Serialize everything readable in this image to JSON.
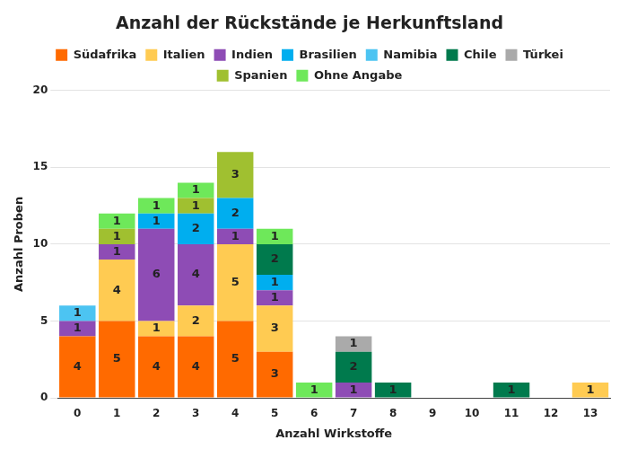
{
  "chart_data": {
    "type": "bar",
    "title": "Anzahl der Rückstände je Herkunftsland",
    "x_label": "Anzahl Wirkstoffe",
    "y_label": "Anzahl Proben",
    "categories": [
      "0",
      "1",
      "2",
      "3",
      "4",
      "5",
      "6",
      "7",
      "8",
      "9",
      "10",
      "11",
      "12",
      "13"
    ],
    "series": [
      {
        "name": "Südafrika",
        "color": "#ff6a00",
        "values": [
          4,
          5,
          4,
          4,
          5,
          3,
          null,
          null,
          null,
          null,
          null,
          null,
          null,
          null
        ]
      },
      {
        "name": "Italien",
        "color": "#ffcb52",
        "values": [
          null,
          4,
          1,
          2,
          5,
          3,
          null,
          null,
          null,
          null,
          null,
          null,
          null,
          1
        ]
      },
      {
        "name": "Indien",
        "color": "#8e4cb5",
        "values": [
          1,
          1,
          6,
          4,
          1,
          1,
          null,
          1,
          null,
          null,
          null,
          null,
          null,
          null
        ]
      },
      {
        "name": "Brasilien",
        "color": "#00aeef",
        "values": [
          null,
          null,
          1,
          2,
          2,
          1,
          null,
          null,
          null,
          null,
          null,
          null,
          null,
          null
        ]
      },
      {
        "name": "Namibia",
        "color": "#4cc4f2",
        "values": [
          1,
          null,
          null,
          null,
          null,
          null,
          null,
          null,
          null,
          null,
          null,
          null,
          null,
          null
        ]
      },
      {
        "name": "Chile",
        "color": "#007a4d",
        "values": [
          null,
          null,
          null,
          null,
          null,
          2,
          null,
          2,
          1,
          null,
          null,
          1,
          null,
          null
        ]
      },
      {
        "name": "Türkei",
        "color": "#aaaaaa",
        "values": [
          null,
          null,
          null,
          null,
          null,
          null,
          null,
          1,
          null,
          null,
          null,
          null,
          null,
          null
        ]
      },
      {
        "name": "Spanien",
        "color": "#a0c030",
        "values": [
          null,
          1,
          null,
          1,
          3,
          null,
          null,
          null,
          null,
          null,
          null,
          null,
          null,
          null
        ]
      },
      {
        "name": "Ohne Angabe",
        "color": "#6ee85a",
        "values": [
          null,
          1,
          1,
          1,
          null,
          1,
          1,
          null,
          null,
          null,
          null,
          null,
          null,
          null
        ]
      }
    ],
    "ylim": [
      0,
      20
    ],
    "yticks": [
      0,
      5,
      10,
      15,
      20
    ],
    "grid": true,
    "stacked": true,
    "data_labels": true,
    "legend": "top"
  }
}
